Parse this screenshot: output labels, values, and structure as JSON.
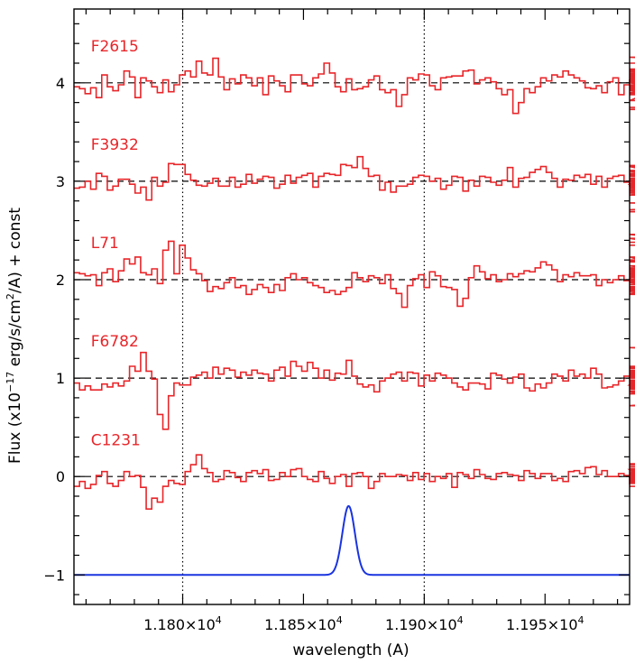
{
  "chart_data": {
    "type": "line",
    "xlabel": "wavelength (A)",
    "ylabel_parts": [
      "Flux (x10",
      "−17",
      " erg/s/cm",
      "2",
      "/A) + const"
    ],
    "xlim": [
      11755,
      11985
    ],
    "ylim": [
      -1.3,
      4.75
    ],
    "xticks": [
      {
        "value": 11800,
        "label": "1.180×10"
      },
      {
        "value": 11850,
        "label": "1.185×10"
      },
      {
        "value": 11900,
        "label": "1.190×10"
      },
      {
        "value": 11950,
        "label": "1.195×10"
      }
    ],
    "xtick_exponent": "4",
    "yticks": [
      {
        "value": -1,
        "label": "−1"
      },
      {
        "value": 0,
        "label": "0"
      },
      {
        "value": 1,
        "label": "1"
      },
      {
        "value": 2,
        "label": "2"
      },
      {
        "value": 3,
        "label": "3"
      },
      {
        "value": 4,
        "label": "4"
      }
    ],
    "vlines": [
      11800,
      11900
    ],
    "step": 2.3,
    "series": [
      {
        "name": "F2615",
        "offset": 4,
        "color": "#e8262a",
        "label_x": 11762,
        "label_y": 4.32,
        "values": [
          -0.04,
          -0.06,
          -0.11,
          -0.05,
          -0.15,
          0.08,
          -0.04,
          -0.08,
          -0.02,
          0.12,
          0.06,
          -0.15,
          0.05,
          0.02,
          -0.04,
          -0.1,
          0.03,
          -0.09,
          -0.02,
          0.08,
          0.12,
          0.06,
          0.22,
          0.1,
          0.08,
          0.25,
          0.06,
          -0.07,
          0.04,
          -0.01,
          0.08,
          0.05,
          -0.03,
          0.05,
          -0.12,
          0.07,
          0.02,
          -0.03,
          -0.09,
          0.08,
          0.08,
          -0.01,
          -0.03,
          0.05,
          0.09,
          0.2,
          0.1,
          -0.04,
          -0.09,
          0.04,
          -0.07,
          -0.06,
          -0.04,
          0.03,
          0.07,
          -0.07,
          -0.1,
          -0.07,
          -0.24,
          -0.12,
          0.05,
          0.03,
          0.09,
          0.08,
          -0.03,
          -0.07,
          0.05,
          0.06,
          0.07,
          0.07,
          0.12,
          0.13,
          -0.01,
          0.03,
          0.05,
          0.01,
          -0.06,
          -0.12,
          -0.07,
          -0.31,
          -0.2,
          -0.06,
          -0.1,
          -0.04,
          0.05,
          0.02,
          0.08,
          0.06,
          0.12,
          0.08,
          0.05,
          0.02,
          -0.05,
          -0.06,
          -0.03,
          -0.1,
          0.01,
          0.05,
          -0.12,
          -0.02,
          0.03,
          0.05,
          0.0,
          -0.02,
          -0.05,
          0.02,
          0.06,
          0.09,
          -0.1,
          -0.18,
          0.04,
          0.07,
          0.14,
          0.08,
          0.04,
          -0.05,
          -0.03,
          0.12,
          -0.1,
          0.05,
          -0.05,
          0.01,
          0.14,
          0.06,
          0.1,
          0.08,
          0.04,
          0.05,
          0.11,
          0.08,
          0.06,
          0.04,
          0.12,
          0.02,
          -0.08,
          0.07,
          0.05,
          0.07,
          -0.06,
          -0.04,
          0.05,
          0.11,
          0.08,
          -0.11,
          -0.06,
          -0.1,
          -0.25,
          -0.27,
          -0.12,
          0.04,
          0.07,
          0.02,
          0.12,
          0.07,
          0.13,
          0.1,
          0.05,
          0.06,
          -0.07,
          0.2,
          0.26,
          0.1
        ]
      },
      {
        "name": "F3932",
        "offset": 3,
        "color": "#e8262a",
        "label_x": 11762,
        "label_y": 3.32,
        "values": [
          -0.07,
          -0.06,
          0.0,
          -0.08,
          0.08,
          0.05,
          -0.09,
          -0.05,
          0.02,
          0.02,
          -0.03,
          -0.12,
          -0.06,
          -0.19,
          0.04,
          -0.05,
          -0.01,
          0.18,
          0.17,
          0.17,
          0.07,
          0.01,
          -0.04,
          -0.05,
          -0.02,
          0.03,
          -0.05,
          -0.05,
          0.04,
          -0.06,
          -0.03,
          0.07,
          -0.02,
          0.02,
          0.05,
          0.04,
          -0.07,
          -0.03,
          0.06,
          -0.02,
          0.04,
          0.06,
          0.08,
          -0.06,
          0.05,
          0.08,
          0.07,
          0.06,
          0.17,
          0.16,
          0.14,
          0.25,
          0.13,
          0.05,
          0.06,
          -0.09,
          -0.01,
          -0.11,
          -0.05,
          -0.05,
          -0.03,
          0.04,
          0.06,
          0.05,
          0.0,
          0.03,
          -0.08,
          -0.04,
          0.05,
          0.04,
          -0.1,
          0.01,
          -0.05,
          0.05,
          0.04,
          -0.01,
          -0.04,
          0.01,
          0.14,
          -0.06,
          0.03,
          0.04,
          0.09,
          0.12,
          0.15,
          0.09,
          0.03,
          -0.06,
          0.02,
          0.01,
          0.06,
          0.04,
          0.07,
          -0.03,
          0.05,
          -0.06,
          0.03,
          0.05,
          0.06,
          -0.01,
          -0.04,
          0.0,
          -0.03,
          0.1,
          0.08,
          0.1,
          0.16,
          0.15,
          0.05,
          0.11,
          0.03,
          -0.04,
          0.06,
          0.05,
          0.07,
          -0.03,
          -0.14,
          -0.07,
          -0.1,
          -0.14,
          0.01,
          -0.09,
          -0.07,
          -0.1,
          0.06,
          -0.06,
          -0.1,
          0.0,
          -0.07,
          0.01,
          -0.08,
          -0.04,
          0.0,
          -0.04,
          0.02,
          0.07,
          0.05,
          -0.05,
          -0.02,
          0.0,
          0.03,
          0.02,
          -0.04,
          -0.07,
          -0.1,
          -0.06,
          -0.09,
          -0.06,
          -0.02,
          -0.07,
          0.03,
          -0.05,
          -0.08,
          -0.07,
          -0.11,
          -0.12,
          -0.22,
          -0.31,
          -0.29,
          -0.05,
          -0.22
        ]
      },
      {
        "name": "L71",
        "offset": 2,
        "color": "#e8262a",
        "label_x": 11762,
        "label_y": 2.32,
        "values": [
          0.07,
          0.06,
          0.04,
          0.05,
          -0.06,
          0.07,
          0.11,
          -0.02,
          0.09,
          0.21,
          0.16,
          0.23,
          0.07,
          0.05,
          0.11,
          -0.04,
          0.3,
          0.39,
          0.06,
          0.35,
          0.22,
          0.1,
          0.06,
          -0.01,
          -0.12,
          -0.07,
          -0.09,
          -0.03,
          0.02,
          -0.08,
          -0.06,
          -0.15,
          -0.1,
          -0.05,
          -0.08,
          -0.13,
          -0.05,
          -0.11,
          0.02,
          0.06,
          0.0,
          0.02,
          -0.03,
          -0.06,
          -0.08,
          -0.13,
          -0.11,
          -0.15,
          -0.12,
          -0.08,
          0.07,
          0.02,
          -0.02,
          0.04,
          0.02,
          -0.04,
          0.05,
          -0.09,
          -0.14,
          -0.28,
          -0.06,
          0.01,
          0.05,
          -0.08,
          0.08,
          0.04,
          -0.07,
          -0.08,
          -0.1,
          -0.27,
          -0.19,
          0.02,
          0.14,
          0.08,
          0.01,
          0.05,
          -0.02,
          0.0,
          0.06,
          0.03,
          0.06,
          0.09,
          0.08,
          0.12,
          0.18,
          0.15,
          0.1,
          -0.02,
          0.05,
          0.03,
          0.07,
          0.04,
          0.04,
          0.05,
          -0.06,
          0.0,
          -0.03,
          0.0,
          0.04,
          -0.01,
          0.0,
          0.07,
          0.06,
          0.0,
          0.02,
          0.03,
          0.19,
          0.23,
          0.11,
          0.14,
          0.08,
          0.0,
          -0.03,
          0.05,
          -0.01,
          -0.15,
          -0.11,
          -0.08,
          0.04,
          0.03,
          -0.05,
          0.07,
          0.12,
          -0.03,
          0.06,
          0.2,
          0.03,
          0.05,
          0.04,
          0.07,
          0.03,
          -0.07,
          -0.05,
          -0.02,
          0.02,
          0.0,
          0.03,
          0.0,
          -0.14,
          0.1,
          0.0,
          -0.08,
          0.09,
          -0.02,
          0.12,
          0.05,
          0.06,
          -0.01,
          -0.15,
          -0.1,
          -0.09,
          -0.11,
          -0.15,
          -0.02,
          0.35,
          0.42,
          -0.12,
          0.0,
          0.18,
          0.46,
          0.06,
          0.38
        ]
      },
      {
        "name": "F6782",
        "offset": 1,
        "color": "#e8262a",
        "label_x": 11762,
        "label_y": 1.32,
        "values": [
          -0.05,
          -0.12,
          -0.08,
          -0.12,
          -0.12,
          -0.06,
          -0.09,
          -0.05,
          -0.08,
          -0.03,
          0.12,
          0.07,
          0.26,
          0.07,
          -0.01,
          -0.37,
          -0.52,
          -0.18,
          -0.05,
          -0.07,
          -0.07,
          0.01,
          0.03,
          0.06,
          0.0,
          0.11,
          0.04,
          0.1,
          0.08,
          0.01,
          0.06,
          0.03,
          0.08,
          0.05,
          0.04,
          -0.03,
          0.08,
          0.11,
          0.02,
          0.17,
          0.12,
          0.07,
          0.16,
          0.1,
          0.0,
          0.08,
          -0.02,
          0.05,
          0.04,
          0.18,
          0.02,
          -0.06,
          -0.09,
          -0.07,
          -0.14,
          -0.03,
          0.0,
          0.04,
          0.06,
          -0.03,
          0.06,
          0.05,
          -0.08,
          0.03,
          -0.03,
          0.05,
          0.03,
          0.0,
          -0.05,
          -0.09,
          -0.12,
          -0.05,
          -0.05,
          -0.06,
          -0.11,
          0.05,
          0.03,
          -0.01,
          -0.05,
          0.01,
          0.04,
          -0.1,
          -0.13,
          -0.06,
          -0.1,
          -0.05,
          0.04,
          0.02,
          -0.03,
          0.08,
          0.02,
          0.04,
          0.0,
          0.1,
          0.04,
          -0.1,
          -0.09,
          -0.07,
          -0.03,
          0.02,
          0.01,
          0.04,
          0.03,
          -0.04,
          -0.07,
          0.1,
          0.11,
          0.04,
          -0.1,
          0.05,
          0.04,
          -0.03,
          0.01,
          -0.1,
          0.06,
          -0.09,
          0.03,
          0.06,
          0.08,
          -0.04,
          -0.16,
          0.01,
          -0.11,
          -0.16,
          -0.05,
          0.03,
          -0.02,
          0.01,
          -0.16,
          0.07,
          0.08,
          0.03,
          -0.08,
          0.06,
          0.06,
          -0.04,
          0.02,
          0.07,
          0.0,
          0.05,
          -0.05,
          0.05,
          0.04,
          0.03,
          -0.05,
          0.07,
          0.06,
          -0.04,
          -0.03,
          -0.14,
          -0.28,
          -0.28,
          -0.04,
          -0.13,
          -0.06,
          0.04,
          0.1,
          0.31,
          0.12,
          0.05
        ]
      },
      {
        "name": "C1231",
        "offset": 0,
        "color": "#e8262a",
        "label_x": 11762,
        "label_y": 0.32,
        "values": [
          -0.1,
          -0.05,
          -0.12,
          -0.08,
          0.01,
          0.05,
          -0.07,
          -0.1,
          -0.04,
          0.05,
          0.0,
          0.01,
          -0.11,
          -0.33,
          -0.22,
          -0.26,
          -0.1,
          -0.04,
          -0.07,
          -0.08,
          0.05,
          0.12,
          0.22,
          0.08,
          0.04,
          -0.05,
          -0.03,
          0.06,
          0.04,
          -0.01,
          -0.05,
          0.04,
          0.06,
          0.03,
          0.07,
          -0.04,
          -0.03,
          0.04,
          0.0,
          0.07,
          0.08,
          0.0,
          -0.03,
          -0.05,
          0.05,
          -0.02,
          -0.07,
          0.0,
          0.02,
          -0.1,
          0.03,
          0.04,
          0.0,
          -0.12,
          -0.05,
          0.03,
          0.0,
          0.0,
          0.02,
          0.01,
          -0.04,
          0.04,
          -0.03,
          0.03,
          -0.05,
          0.0,
          -0.02,
          0.03,
          -0.11,
          0.04,
          0.02,
          -0.02,
          0.07,
          0.02,
          -0.02,
          -0.03,
          0.03,
          0.04,
          0.02,
          0.01,
          -0.04,
          0.06,
          0.03,
          -0.02,
          0.03,
          0.03,
          -0.04,
          -0.02,
          -0.05,
          0.05,
          0.06,
          0.03,
          0.09,
          0.1,
          0.02,
          0.06,
          0.0,
          0.0,
          0.03,
          0.01,
          -0.06,
          0.03,
          0.07,
          -0.04,
          -0.06,
          -0.01,
          0.03,
          -0.04,
          -0.05,
          0.0,
          0.01,
          0.08,
          0.1,
          0.12,
          0.13,
          0.05,
          -0.02,
          0.0,
          0.05,
          0.0,
          0.04,
          0.06,
          -0.04,
          -0.06,
          -0.07,
          -0.03,
          0.06,
          0.04,
          0.03,
          0.06,
          -0.03,
          -0.06,
          0.04,
          0.04,
          0.07,
          -0.01,
          -0.05,
          0.04,
          0.05,
          -0.04,
          0.0,
          0.03,
          -0.03,
          0.02,
          0.0,
          -0.1,
          -0.05,
          0.02,
          -0.04,
          0.05,
          -0.03,
          0.05,
          0.03,
          0.07,
          0.04,
          0.04,
          -0.06,
          0.07,
          -0.03,
          0.01,
          0.06
        ]
      }
    ],
    "model_line": {
      "color": "#1a34e0",
      "baseline": -1,
      "amplitude": 0.7,
      "center": 11868.7,
      "sigma": 2.6
    }
  }
}
